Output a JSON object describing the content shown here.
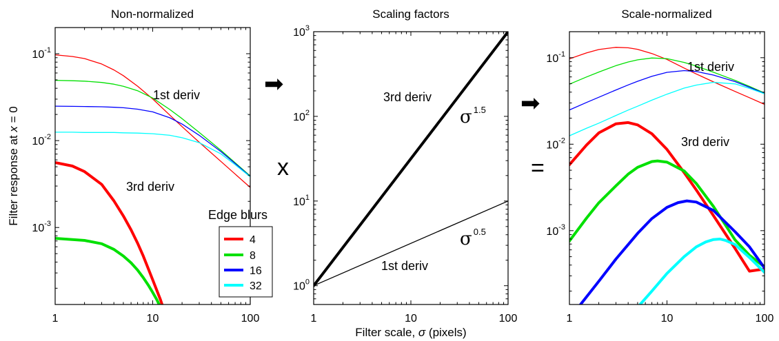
{
  "chart_data": [
    {
      "type": "line",
      "title": "Non-normalized",
      "xlabel": "",
      "ylabel": "Filter response at x = 0",
      "x_scale": "log",
      "y_scale": "log",
      "xlim": [
        1,
        100
      ],
      "ylim": [
        0.00013,
        0.2
      ],
      "x_tick_labels": [
        "1",
        "10",
        "100"
      ],
      "y_tick_labels": [
        {
          "base": "10",
          "exp": "-3",
          "value": 0.001
        },
        {
          "base": "10",
          "exp": "-2",
          "value": 0.01
        },
        {
          "base": "10",
          "exp": "-1",
          "value": 0.1
        }
      ],
      "annotations": [
        "1st deriv",
        "3rd deriv"
      ],
      "legend": {
        "title": "Edge blurs",
        "placement": "bottom-right",
        "entries": [
          {
            "label": "4",
            "color": "#ff0000"
          },
          {
            "label": "8",
            "color": "#00e000"
          },
          {
            "label": "16",
            "color": "#0000ff"
          },
          {
            "label": "32",
            "color": "#00ffff"
          }
        ]
      },
      "series": [
        {
          "group": "1st deriv",
          "blur": 4,
          "color": "#ff0000",
          "width": "thin",
          "x": [
            1,
            1.5,
            2,
            3,
            4,
            5,
            7,
            10,
            15,
            20,
            30,
            50,
            70,
            100
          ],
          "y": [
            0.097,
            0.0929,
            0.0879,
            0.0762,
            0.0651,
            0.0559,
            0.0423,
            0.0302,
            0.0196,
            0.0145,
            0.00958,
            0.00576,
            0.00412,
            0.00289
          ]
        },
        {
          "group": "1st deriv",
          "blur": 8,
          "color": "#00e000",
          "width": "thin",
          "x": [
            1,
            1.5,
            2,
            3,
            4,
            5,
            7,
            10,
            15,
            20,
            30,
            50,
            70,
            100
          ],
          "y": [
            0.0494,
            0.0489,
            0.0483,
            0.0467,
            0.0446,
            0.0422,
            0.0375,
            0.0309,
            0.0228,
            0.0179,
            0.0124,
            0.00774,
            0.00557,
            0.00391
          ]
        },
        {
          "group": "1st deriv",
          "blur": 16,
          "color": "#0000ff",
          "width": "thin",
          "x": [
            1,
            1.5,
            2,
            3,
            4,
            5,
            7,
            10,
            15,
            20,
            30,
            50,
            70,
            100
          ],
          "y": [
            0.0249,
            0.0248,
            0.0247,
            0.0245,
            0.0242,
            0.0239,
            0.023,
            0.0214,
            0.0183,
            0.0155,
            0.0115,
            0.00748,
            0.00545,
            0.00386
          ]
        },
        {
          "group": "1st deriv",
          "blur": 32,
          "color": "#00ffff",
          "width": "thin",
          "x": [
            1,
            1.5,
            2,
            3,
            4,
            5,
            7,
            10,
            15,
            20,
            30,
            50,
            70,
            100
          ],
          "y": [
            0.0125,
            0.0125,
            0.0124,
            0.0124,
            0.0124,
            0.0123,
            0.0122,
            0.012,
            0.0115,
            0.0108,
            0.00947,
            0.00704,
            0.00528,
            0.00383
          ]
        },
        {
          "group": "3rd deriv",
          "blur": 4,
          "color": "#ff0000",
          "width": "thick",
          "x": [
            1,
            1.5,
            2,
            3,
            4,
            5,
            6,
            7,
            8,
            10,
            12,
            14
          ],
          "y": [
            0.0056,
            0.0051,
            0.0044,
            0.00313,
            0.00203,
            0.00136,
            0.00094,
            0.00066,
            0.00047,
            0.00025,
            0.000148,
            8.86e-05
          ]
        },
        {
          "group": "3rd deriv",
          "blur": 8,
          "color": "#00e000",
          "width": "thick",
          "x": [
            1,
            2,
            3,
            4,
            5,
            6,
            7,
            8,
            9,
            10,
            11,
            12
          ],
          "y": [
            0.00075,
            0.00071,
            0.00065,
            0.00056,
            0.00047,
            0.000392,
            0.000323,
            0.000265,
            0.000218,
            0.000179,
            0.000148,
            0.000121
          ]
        }
      ]
    },
    {
      "type": "line",
      "title": "Scaling factors",
      "xlabel": "Filter scale, σ (pixels)",
      "ylabel": "",
      "x_scale": "log",
      "y_scale": "log",
      "xlim": [
        1,
        100
      ],
      "ylim": [
        0.6,
        1000
      ],
      "x_tick_labels": [
        "1",
        "10",
        "100"
      ],
      "y_tick_labels": [
        {
          "base": "10",
          "exp": "0",
          "value": 1
        },
        {
          "base": "10",
          "exp": "1",
          "value": 10
        },
        {
          "base": "10",
          "exp": "2",
          "value": 100
        },
        {
          "base": "10",
          "exp": "3",
          "value": 1000
        }
      ],
      "annotations": [
        "3rd deriv",
        "1st deriv"
      ],
      "series": [
        {
          "label": "3rd deriv",
          "formula_base": "σ",
          "formula_exp": "1.5",
          "color": "#000000",
          "width": "thick",
          "x": [
            1,
            100
          ],
          "y": [
            1,
            1000
          ]
        },
        {
          "label": "1st deriv",
          "formula_base": "σ",
          "formula_exp": "0.5",
          "color": "#000000",
          "width": "thin",
          "x": [
            1,
            100
          ],
          "y": [
            1,
            10
          ]
        }
      ]
    },
    {
      "type": "line",
      "title": "Scale-normalized",
      "xlabel": "",
      "ylabel": "",
      "x_scale": "log",
      "y_scale": "log",
      "xlim": [
        1,
        100
      ],
      "ylim": [
        0.00014,
        0.2
      ],
      "x_tick_labels": [
        "1",
        "10",
        "100"
      ],
      "y_tick_labels": [
        {
          "base": "10",
          "exp": "-3",
          "value": 0.001
        },
        {
          "base": "10",
          "exp": "-2",
          "value": 0.01
        },
        {
          "base": "10",
          "exp": "-1",
          "value": 0.1
        }
      ],
      "annotations": [
        "1st deriv",
        "3rd deriv"
      ],
      "series": [
        {
          "group": "1st deriv",
          "blur": 4,
          "color": "#ff0000",
          "width": "thin",
          "x": [
            1,
            1.5,
            2,
            3,
            4,
            5,
            7,
            10,
            15,
            20,
            30,
            50,
            70,
            100
          ],
          "y": [
            0.097,
            0.1138,
            0.1243,
            0.132,
            0.1302,
            0.125,
            0.1119,
            0.0955,
            0.0759,
            0.0648,
            0.0525,
            0.0407,
            0.0345,
            0.0289
          ]
        },
        {
          "group": "1st deriv",
          "blur": 8,
          "color": "#00e000",
          "width": "thin",
          "x": [
            1,
            1.5,
            2,
            3,
            4,
            5,
            7,
            10,
            15,
            20,
            30,
            50,
            70,
            100
          ],
          "y": [
            0.0494,
            0.0599,
            0.0683,
            0.0809,
            0.0892,
            0.0944,
            0.0992,
            0.0977,
            0.0883,
            0.08,
            0.0679,
            0.0547,
            0.0466,
            0.0391
          ]
        },
        {
          "group": "1st deriv",
          "blur": 16,
          "color": "#0000ff",
          "width": "thin",
          "x": [
            1,
            1.5,
            2,
            3,
            4,
            5,
            7,
            10,
            15,
            20,
            30,
            50,
            70,
            100
          ],
          "y": [
            0.0249,
            0.0304,
            0.0349,
            0.0424,
            0.0484,
            0.0534,
            0.0609,
            0.0677,
            0.0709,
            0.0693,
            0.063,
            0.0529,
            0.0456,
            0.0386
          ]
        },
        {
          "group": "1st deriv",
          "blur": 32,
          "color": "#00ffff",
          "width": "thin",
          "x": [
            1,
            1.5,
            2,
            3,
            4,
            5,
            7,
            10,
            15,
            20,
            30,
            50,
            70,
            100
          ],
          "y": [
            0.0125,
            0.0153,
            0.0175,
            0.0215,
            0.0248,
            0.0275,
            0.0323,
            0.0379,
            0.0445,
            0.0483,
            0.0519,
            0.0498,
            0.0442,
            0.0383
          ]
        },
        {
          "group": "3rd deriv",
          "blur": 4,
          "color": "#ff0000",
          "width": "thick",
          "x": [
            1,
            1.5,
            2,
            3,
            4,
            5,
            7,
            10,
            15,
            20,
            30,
            50,
            70,
            100
          ],
          "y": [
            0.0058,
            0.0098,
            0.0135,
            0.0172,
            0.0178,
            0.0167,
            0.0132,
            0.0087,
            0.0047,
            0.00295,
            0.00149,
            0.00062,
            0.00034,
            0.00036
          ]
        },
        {
          "group": "3rd deriv",
          "blur": 8,
          "color": "#00e000",
          "width": "thick",
          "x": [
            1,
            1.5,
            2,
            3,
            4,
            5,
            7,
            8,
            10,
            15,
            20,
            30,
            50,
            70,
            100
          ],
          "y": [
            0.00076,
            0.0014,
            0.0021,
            0.0033,
            0.0045,
            0.0054,
            0.0063,
            0.0064,
            0.0062,
            0.0049,
            0.0035,
            0.0019,
            0.00078,
            0.00052,
            0.00038
          ]
        },
        {
          "group": "3rd deriv",
          "blur": 16,
          "color": "#0000ff",
          "width": "thick",
          "x": [
            1.3,
            2,
            3,
            4,
            5,
            7,
            10,
            13,
            16,
            20,
            30,
            50,
            70,
            100
          ],
          "y": [
            0.00014,
            0.00026,
            0.00047,
            0.00069,
            0.00093,
            0.00138,
            0.00186,
            0.00211,
            0.00221,
            0.00214,
            0.00171,
            0.00097,
            0.00065,
            0.00037
          ]
        },
        {
          "group": "3rd deriv",
          "blur": 32,
          "color": "#00ffff",
          "width": "thick",
          "x": [
            5.3,
            7,
            10,
            15,
            20,
            25,
            30,
            35,
            40,
            50,
            70,
            100
          ],
          "y": [
            0.00014,
            0.0002,
            0.00032,
            0.0005,
            0.00065,
            0.00074,
            0.00079,
            0.0008,
            0.00077,
            0.00069,
            0.00049,
            0.00033
          ]
        }
      ]
    }
  ],
  "symbols": {
    "arrow_left": "➡",
    "arrow_right": "➡",
    "multiply": "x",
    "equals": "="
  }
}
